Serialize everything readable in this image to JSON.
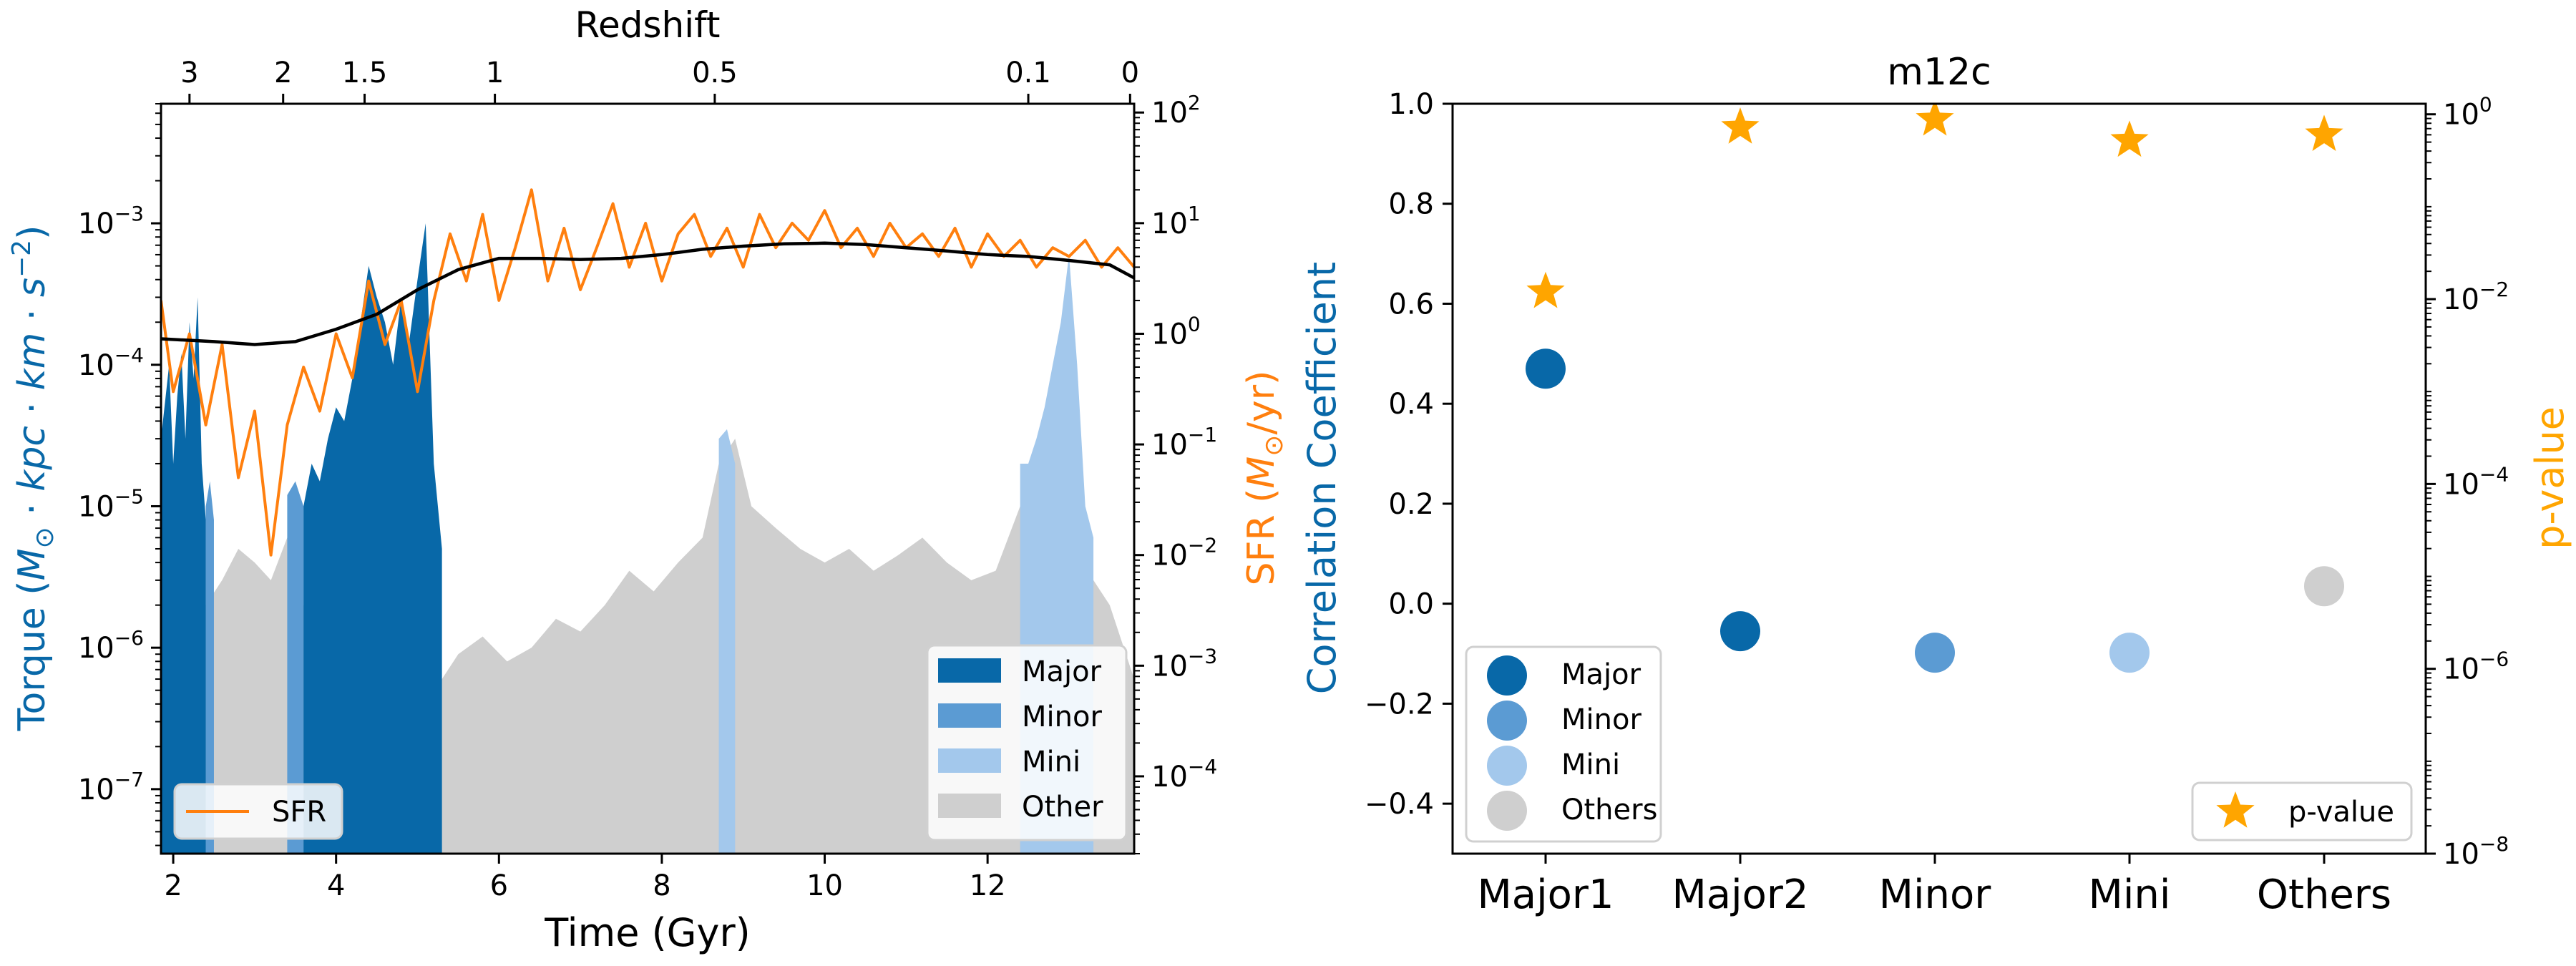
{
  "colors": {
    "major": "#0868a8",
    "minor": "#5b9bd3",
    "mini": "#a3c8ec",
    "other": "#cfcfcf",
    "sfr": "#ff7f0e",
    "smooth": "#000000",
    "left_label": "#0868a8",
    "right_label": "#ff9900",
    "star": "#ffa500"
  },
  "chart_data": [
    {
      "type": "area",
      "panel": "left",
      "title": "Redshift",
      "xlabel": "Time (Gyr)",
      "ylabel_left": "Torque (M_⊙ · kpc · km · s⁻²)",
      "ylabel_right": "SFR (M_⊙/yr)",
      "xlim": [
        1.85,
        13.8
      ],
      "ylim_left": [
        3.5e-08,
        0.007
      ],
      "ylim_right": [
        2e-05,
        120
      ],
      "yscale_left": "log",
      "yscale_right": "log",
      "x_ticks": [
        2,
        4,
        6,
        8,
        10,
        12
      ],
      "y_ticks_left": [
        "10^-7",
        "10^-6",
        "10^-5",
        "10^-4",
        "10^-3"
      ],
      "y_ticks_right": [
        "10^-4",
        "10^-3",
        "10^-2",
        "10^-1",
        "10^0",
        "10^1",
        "10^2"
      ],
      "top_axis": {
        "label": "Redshift",
        "ticks": [
          {
            "label": "3",
            "time": 2.2
          },
          {
            "label": "2",
            "time": 3.35
          },
          {
            "label": "1.5",
            "time": 4.35
          },
          {
            "label": "1",
            "time": 5.95
          },
          {
            "label": "0.5",
            "time": 8.65
          },
          {
            "label": "0.1",
            "time": 12.5
          },
          {
            "label": "0",
            "time": 13.75
          }
        ]
      },
      "legend_upper": {
        "position": "lower-right",
        "entries": [
          "Major",
          "Minor",
          "Mini",
          "Other"
        ]
      },
      "legend_lower": {
        "position": "lower-left",
        "entries": [
          "SFR"
        ]
      },
      "series": [
        {
          "name": "Major",
          "kind": "area",
          "segments": [
            [
              1.85,
              2.4
            ],
            [
              3.6,
              5.3
            ]
          ],
          "x": [
            1.85,
            1.95,
            2.0,
            2.05,
            2.1,
            2.15,
            2.2,
            2.25,
            2.3,
            2.35,
            2.4,
            3.6,
            3.7,
            3.8,
            3.9,
            4.0,
            4.1,
            4.2,
            4.3,
            4.4,
            4.5,
            4.6,
            4.7,
            4.8,
            4.9,
            5.0,
            5.1,
            5.2,
            5.3
          ],
          "y": [
            3e-05,
            0.0001,
            2e-05,
            6e-05,
            0.00012,
            3e-05,
            0.0002,
            8e-05,
            0.0003,
            2e-05,
            8e-06,
            1e-05,
            2e-05,
            1.5e-05,
            3e-05,
            5e-05,
            4e-05,
            8e-05,
            0.0002,
            0.0005,
            0.0003,
            0.0002,
            0.0001,
            0.0003,
            0.00015,
            0.0004,
            0.001,
            2e-05,
            5e-06
          ]
        },
        {
          "name": "Minor",
          "kind": "area",
          "segments": [
            [
              2.4,
              2.5
            ],
            [
              3.4,
              3.6
            ]
          ],
          "x": [
            2.4,
            2.45,
            2.5,
            3.4,
            3.5,
            3.6
          ],
          "y": [
            1e-05,
            1.5e-05,
            8e-06,
            1.2e-05,
            1.5e-05,
            1e-05
          ]
        },
        {
          "name": "Mini",
          "kind": "area",
          "segments": [
            [
              8.7,
              8.9
            ],
            [
              12.4,
              13.3
            ]
          ],
          "x": [
            8.7,
            8.8,
            8.9,
            12.4,
            12.5,
            12.6,
            12.7,
            12.8,
            12.9,
            13.0,
            13.1,
            13.2,
            13.3
          ],
          "y": [
            3e-05,
            3.5e-05,
            2e-05,
            2e-05,
            2e-05,
            3e-05,
            5e-05,
            0.0001,
            0.0002,
            0.0006,
            0.0001,
            1e-05,
            6e-06
          ]
        },
        {
          "name": "Other",
          "kind": "area",
          "x": [
            2.4,
            2.6,
            2.8,
            3.0,
            3.2,
            3.4,
            3.6,
            3.8,
            5.3,
            5.5,
            5.8,
            6.1,
            6.4,
            6.7,
            7.0,
            7.3,
            7.6,
            7.9,
            8.2,
            8.5,
            8.7,
            8.9,
            9.1,
            9.4,
            9.7,
            10.0,
            10.3,
            10.6,
            10.9,
            11.2,
            11.5,
            11.8,
            12.1,
            12.4,
            13.3,
            13.5,
            13.8
          ],
          "y": [
            2e-06,
            3e-06,
            5e-06,
            4e-06,
            3e-06,
            6e-06,
            2e-06,
            1.5e-06,
            6e-07,
            9e-07,
            1.2e-06,
            8e-07,
            1e-06,
            1.6e-06,
            1.3e-06,
            2e-06,
            3.5e-06,
            2.5e-06,
            4e-06,
            6e-06,
            2e-05,
            3e-05,
            1e-05,
            7e-06,
            5e-06,
            4e-06,
            5e-06,
            3.5e-06,
            4.5e-06,
            6e-06,
            4e-06,
            3e-06,
            3.5e-06,
            1e-05,
            3e-06,
            2e-06,
            6e-07
          ]
        },
        {
          "name": "SFR",
          "kind": "line",
          "axis": "right",
          "x": [
            1.85,
            2.0,
            2.2,
            2.4,
            2.6,
            2.8,
            3.0,
            3.2,
            3.4,
            3.6,
            3.8,
            4.0,
            4.2,
            4.4,
            4.6,
            4.8,
            5.0,
            5.2,
            5.4,
            5.6,
            5.8,
            6.0,
            6.2,
            6.4,
            6.6,
            6.8,
            7.0,
            7.2,
            7.4,
            7.6,
            7.8,
            8.0,
            8.2,
            8.4,
            8.6,
            8.8,
            9.0,
            9.2,
            9.4,
            9.6,
            9.8,
            10.0,
            10.2,
            10.4,
            10.6,
            10.8,
            11.0,
            11.2,
            11.4,
            11.6,
            11.8,
            12.0,
            12.2,
            12.4,
            12.6,
            12.8,
            13.0,
            13.2,
            13.4,
            13.6,
            13.8
          ],
          "y": [
            2.0,
            0.3,
            1.0,
            0.15,
            0.8,
            0.05,
            0.2,
            0.01,
            0.15,
            0.5,
            0.2,
            1.0,
            0.4,
            3.0,
            0.8,
            2.0,
            0.3,
            2.0,
            8.0,
            3.0,
            12.0,
            2.0,
            6.0,
            20.0,
            3.0,
            9.0,
            2.5,
            6.0,
            15.0,
            4.0,
            10.0,
            3.0,
            8.0,
            12.0,
            5.0,
            9.0,
            4.0,
            12.0,
            6.0,
            10.0,
            7.0,
            13.0,
            6.0,
            9.0,
            5.0,
            10.0,
            6.0,
            8.0,
            5.0,
            9.0,
            4.0,
            8.0,
            5.0,
            7.0,
            4.0,
            6.0,
            5.0,
            7.0,
            4.0,
            6.0,
            4.0
          ]
        },
        {
          "name": "SFR smooth",
          "kind": "line",
          "axis": "right",
          "x": [
            1.85,
            2.5,
            3.0,
            3.5,
            4.0,
            4.5,
            5.0,
            5.5,
            6.0,
            6.5,
            7.0,
            7.5,
            8.0,
            8.5,
            9.0,
            9.5,
            10.0,
            10.5,
            11.0,
            11.5,
            12.0,
            12.5,
            13.0,
            13.5,
            13.8
          ],
          "y": [
            0.9,
            0.85,
            0.8,
            0.85,
            1.1,
            1.5,
            2.5,
            3.8,
            4.8,
            4.8,
            4.7,
            4.8,
            5.2,
            5.8,
            6.2,
            6.5,
            6.6,
            6.4,
            6.0,
            5.6,
            5.2,
            5.0,
            4.6,
            4.2,
            3.2
          ]
        }
      ]
    },
    {
      "type": "scatter",
      "panel": "right",
      "title": "m12c",
      "xlabel": "",
      "ylabel_left": "Correlation Coefficient",
      "ylabel_right": "p-value",
      "categories": [
        "Major1",
        "Major2",
        "Minor",
        "Mini",
        "Others"
      ],
      "ylim_left": [
        -0.5,
        1.0
      ],
      "ylim_right": [
        1e-08,
        1.3
      ],
      "yscale_right": "log",
      "y_ticks_left": [
        "−0.4",
        "−0.2",
        "0.0",
        "0.2",
        "0.4",
        "0.6",
        "0.8",
        "1.0"
      ],
      "y_ticks_right": [
        "10^-8",
        "10^-6",
        "10^-4",
        "10^-2",
        "10^0"
      ],
      "legend_upper": {
        "position": "lower-left",
        "entries": [
          "Major",
          "Minor",
          "Mini",
          "Others"
        ]
      },
      "legend_lower": {
        "position": "lower-right",
        "entries": [
          "p-value"
        ]
      },
      "series": [
        {
          "name": "Correlation",
          "axis": "left",
          "values": [
            0.47,
            -0.055,
            -0.098,
            -0.098,
            0.035
          ],
          "groups": [
            "major",
            "major",
            "minor",
            "mini",
            "other"
          ]
        },
        {
          "name": "p-value",
          "axis": "right",
          "values": [
            0.012,
            0.72,
            0.88,
            0.52,
            0.6
          ]
        }
      ]
    }
  ]
}
